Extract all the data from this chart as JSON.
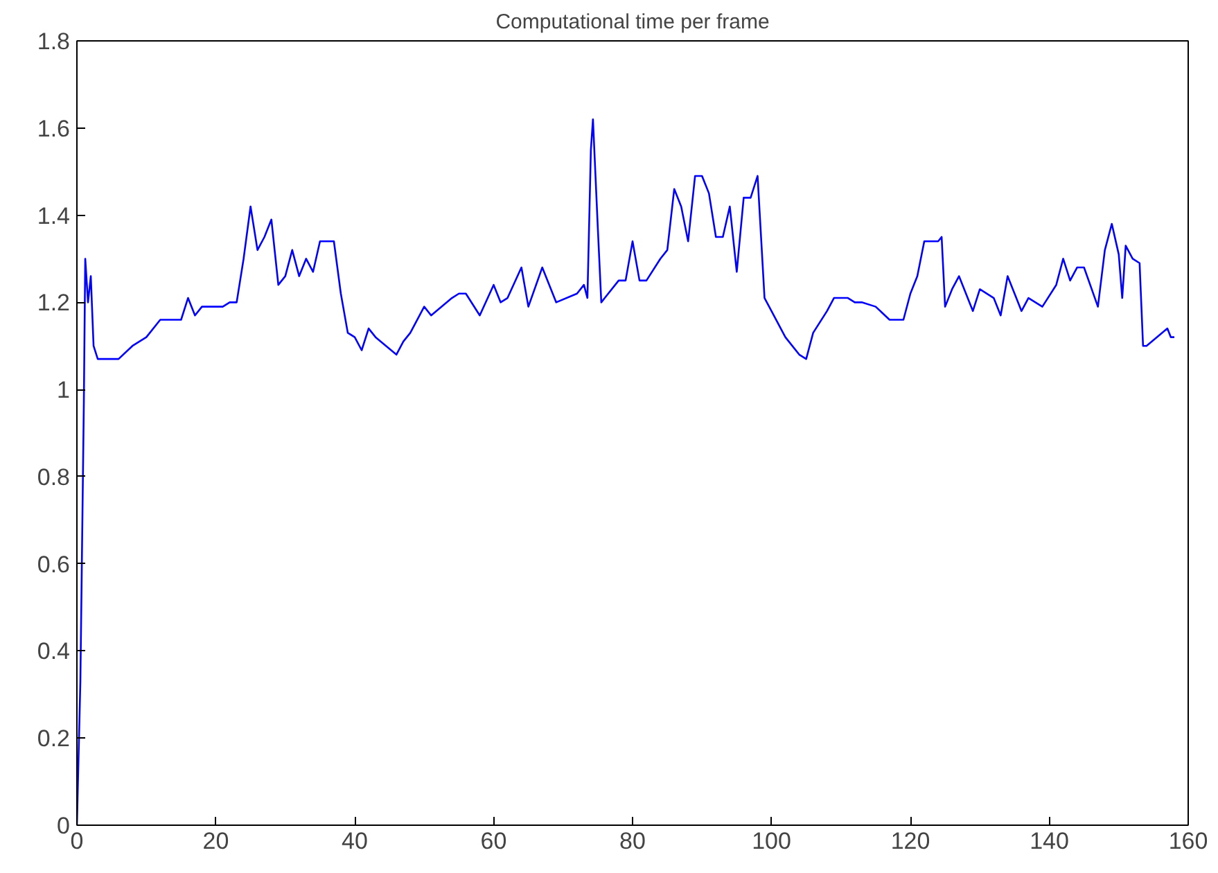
{
  "chart_data": {
    "type": "line",
    "title": "Computational time per frame",
    "x": [
      0,
      0.5,
      1,
      1.2,
      1.6,
      2,
      2.4,
      3,
      6,
      8,
      10,
      12,
      15,
      16,
      17,
      18,
      21,
      22,
      23,
      24,
      25,
      26,
      27,
      28,
      29,
      30,
      31,
      32,
      33,
      34,
      35,
      37,
      38,
      39,
      40,
      41,
      42,
      43,
      46,
      47,
      48,
      50,
      51,
      54,
      55,
      56,
      58,
      60,
      61,
      62,
      64,
      65,
      67,
      69,
      72,
      73,
      73.5,
      74,
      74.3,
      75,
      75.5,
      76,
      78,
      79,
      80,
      81,
      82,
      84,
      85,
      86,
      87,
      88,
      89,
      90,
      91,
      92,
      93,
      94,
      95,
      96,
      97,
      98,
      99,
      100,
      102,
      104,
      105,
      106,
      108,
      109,
      111,
      112,
      113,
      115,
      117,
      119,
      120,
      121,
      122,
      124,
      124.5,
      125,
      126,
      127,
      129,
      130,
      132,
      133,
      134,
      135,
      136,
      137,
      139,
      141,
      142,
      143,
      144,
      145,
      147,
      148,
      149,
      150,
      150.5,
      151,
      152,
      153,
      153.5,
      154,
      157,
      157.5,
      158
    ],
    "series": [
      {
        "color": "#0000ff",
        "values": [
          0,
          0.33,
          0.97,
          1.3,
          1.2,
          1.26,
          1.1,
          1.07,
          1.07,
          1.1,
          1.12,
          1.16,
          1.16,
          1.21,
          1.17,
          1.19,
          1.19,
          1.2,
          1.2,
          1.3,
          1.42,
          1.32,
          1.35,
          1.39,
          1.24,
          1.26,
          1.32,
          1.26,
          1.3,
          1.27,
          1.34,
          1.34,
          1.22,
          1.13,
          1.12,
          1.09,
          1.14,
          1.12,
          1.08,
          1.11,
          1.13,
          1.19,
          1.17,
          1.21,
          1.22,
          1.22,
          1.17,
          1.24,
          1.2,
          1.21,
          1.28,
          1.19,
          1.28,
          1.2,
          1.22,
          1.24,
          1.21,
          1.55,
          1.62,
          1.37,
          1.2,
          1.21,
          1.25,
          1.25,
          1.34,
          1.25,
          1.25,
          1.3,
          1.32,
          1.46,
          1.42,
          1.34,
          1.49,
          1.49,
          1.45,
          1.35,
          1.35,
          1.42,
          1.27,
          1.44,
          1.44,
          1.49,
          1.21,
          1.18,
          1.12,
          1.08,
          1.07,
          1.13,
          1.18,
          1.21,
          1.21,
          1.2,
          1.2,
          1.19,
          1.16,
          1.16,
          1.22,
          1.26,
          1.34,
          1.34,
          1.35,
          1.19,
          1.23,
          1.26,
          1.18,
          1.23,
          1.21,
          1.17,
          1.26,
          1.22,
          1.18,
          1.21,
          1.19,
          1.24,
          1.3,
          1.25,
          1.28,
          1.28,
          1.19,
          1.32,
          1.38,
          1.31,
          1.21,
          1.33,
          1.3,
          1.29,
          1.1,
          1.1,
          1.14,
          1.12,
          1.12
        ]
      }
    ],
    "xlim": [
      0,
      160
    ],
    "ylim": [
      0,
      1.8
    ],
    "xticks": [
      0,
      20,
      40,
      60,
      80,
      100,
      120,
      140,
      160
    ],
    "yticks": [
      0,
      {
        "value": 0.2,
        "label": "0.2"
      },
      {
        "value": 0.4,
        "label": "0.4"
      },
      {
        "value": 0.6,
        "label": "0.6"
      },
      {
        "value": 0.8,
        "label": "0.8"
      },
      1,
      {
        "value": 1.2,
        "label": "1.2"
      },
      {
        "value": 1.4,
        "label": "1.4"
      },
      {
        "value": 1.6,
        "label": "1.6"
      },
      {
        "value": 1.8,
        "label": "1.8"
      }
    ],
    "grid": false,
    "marker": "none",
    "line_style": "solid"
  }
}
